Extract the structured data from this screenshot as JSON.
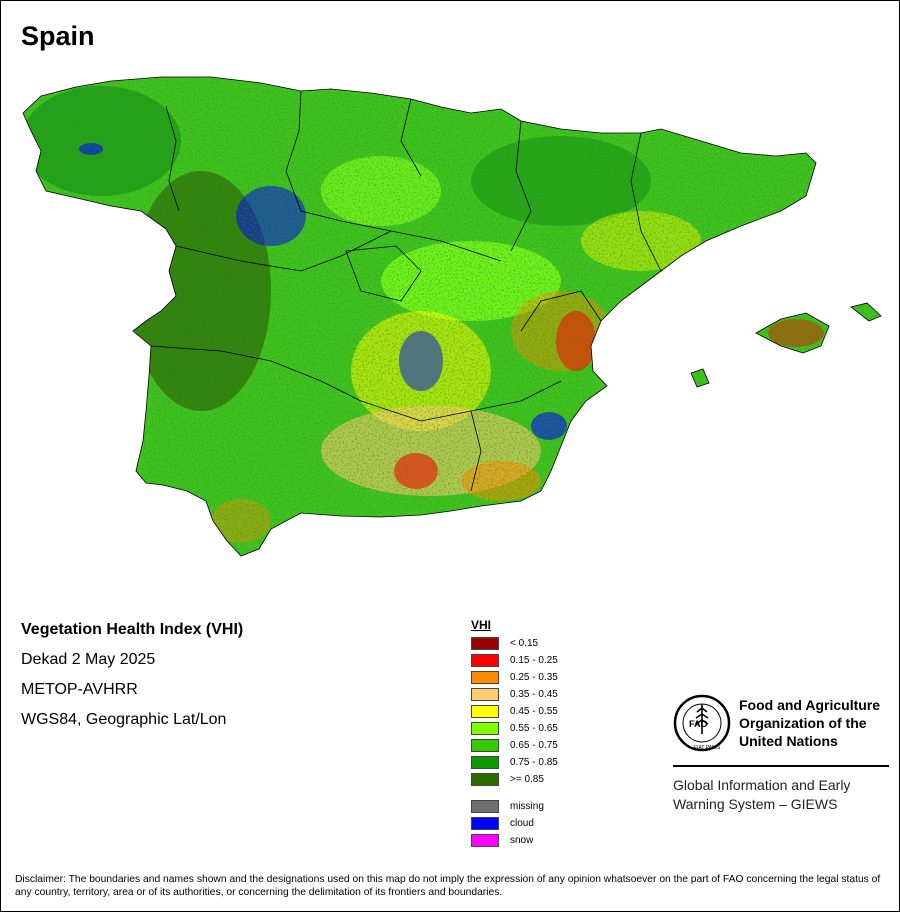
{
  "title": "Spain",
  "map": {
    "country": "Spain",
    "colors": {
      "dark_green": "#2e6e08",
      "green": "#1b9a16",
      "light_green": "#3ec41e",
      "lime": "#7cff1c",
      "yellow": "#ffff00",
      "tan": "#ffcc70",
      "orange": "#ff8c00",
      "red": "#ff0000",
      "dark_red": "#9b0000",
      "cloud": "#0000ff",
      "border": "#000000"
    }
  },
  "info": {
    "index_name": "Vegetation Health Index (VHI)",
    "period": "Dekad 2 May 2025",
    "sensor": "METOP-AVHRR",
    "projection": "WGS84, Geographic Lat/Lon"
  },
  "legend": {
    "title": "VHI",
    "classes": [
      {
        "label": "< 0.15",
        "color": "#990000"
      },
      {
        "label": "0.15 - 0.25",
        "color": "#ff0000"
      },
      {
        "label": "0.25 - 0.35",
        "color": "#ff8c00"
      },
      {
        "label": "0.35 - 0.45",
        "color": "#ffcc70"
      },
      {
        "label": "0.45 - 0.55",
        "color": "#ffff00"
      },
      {
        "label": "0.55 - 0.65",
        "color": "#80ff00"
      },
      {
        "label": "0.65 - 0.75",
        "color": "#33cc00"
      },
      {
        "label": "0.75 - 0.85",
        "color": "#0d9900"
      },
      {
        "label": ">= 0.85",
        "color": "#2d6e00"
      }
    ],
    "special": [
      {
        "label": "missing",
        "color": "#6e6e6e"
      },
      {
        "label": "cloud",
        "color": "#0000ff"
      },
      {
        "label": "snow",
        "color": "#ff00ff"
      }
    ]
  },
  "organization": {
    "name_line1": "Food and Agriculture",
    "name_line2": "Organization of the",
    "name_line3": "United Nations",
    "logo_letters": "FAO",
    "logo_motto": "FIAT PANIS",
    "system_line1": "Global Information and Early",
    "system_line2": "Warning System – GIEWS"
  },
  "disclaimer": "Disclaimer: The boundaries and names shown and the designations used on this map do not imply the expression of any opinion whatsoever on the part of FAO concerning the legal status of any country, territory, area or of its authorities, or concerning the delimitation of its frontiers and boundaries."
}
